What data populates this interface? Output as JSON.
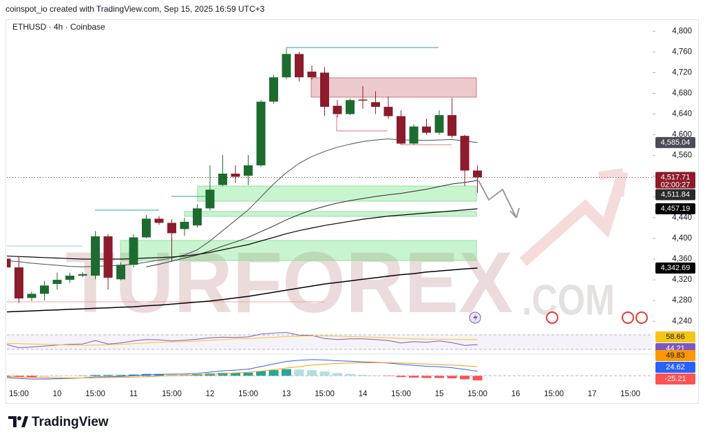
{
  "chart_data": {
    "type": "candlestick",
    "header": "coinspot_io created with TradingView.com, Sep 15, 2025 16:59 UTC+3",
    "title": "ETHUSD · 4h · Coinbase",
    "watermark": [
      "TURFOREX",
      ".COM"
    ],
    "footer": "TradingView",
    "categories": [
      null,
      "15:00",
      null,
      null,
      "10",
      null,
      null,
      "15:00",
      null,
      null,
      "11",
      null,
      null,
      "15:00",
      null,
      null,
      "12",
      null,
      null,
      "15:00",
      null,
      null,
      "13",
      null,
      null,
      "15:00",
      null,
      null,
      "14",
      null,
      null,
      "15:00",
      null,
      null,
      "15",
      null,
      null,
      "15:00",
      null,
      null,
      "16",
      null,
      null,
      "15:00",
      null,
      null,
      "17",
      null,
      null,
      "15:00"
    ],
    "open": [
      4361,
      4344,
      4285,
      4293,
      4312,
      4320,
      4328,
      4328,
      4404,
      4321,
      4349,
      4402,
      4438,
      4430,
      4418,
      4425,
      4458,
      4503,
      4525,
      4521,
      4541,
      4664,
      4711,
      4756,
      4722,
      4720,
      4656,
      4640,
      4668,
      4663,
      4654,
      4636,
      4583,
      4616,
      4604,
      4638,
      4598,
      4531,
      null,
      null,
      null,
      null,
      null,
      null,
      null,
      null,
      null,
      null,
      null,
      null
    ],
    "high": [
      4365,
      4365,
      4297,
      4318,
      4334,
      4334,
      4335,
      4414,
      4408,
      4354,
      4408,
      4445,
      4443,
      4437,
      4440,
      4466,
      4541,
      4561,
      4541,
      4561,
      4667,
      4716,
      4767,
      4760,
      4734,
      4731,
      4667,
      4670,
      4694,
      4684,
      4674,
      4647,
      4620,
      4631,
      4647,
      4671,
      4600,
      4541,
      null,
      null,
      null,
      null,
      null,
      null,
      null,
      null,
      null,
      null,
      null,
      null
    ],
    "low": [
      4340,
      4275,
      4279,
      4280,
      4301,
      4314,
      4325,
      4321,
      4301,
      4319,
      4344,
      4400,
      4426,
      4355,
      4405,
      4421,
      4454,
      4501,
      4507,
      4503,
      4538,
      4660,
      4707,
      4703,
      4707,
      4636,
      4634,
      4638,
      4650,
      4640,
      4631,
      4581,
      4581,
      4600,
      4600,
      4594,
      4501,
      4488,
      null,
      null,
      null,
      null,
      null,
      null,
      null,
      null,
      null,
      null,
      null,
      null
    ],
    "close": [
      4344,
      4284,
      4293,
      4309,
      4320,
      4328,
      4331,
      4404,
      4324,
      4349,
      4402,
      4438,
      4430,
      4410,
      4432,
      4458,
      4494,
      4525,
      4519,
      4541,
      4664,
      4711,
      4756,
      4711,
      4711,
      4654,
      4640,
      4667,
      4666,
      4654,
      4636,
      4583,
      4616,
      4604,
      4638,
      4598,
      4531,
      4517.71,
      null,
      null,
      null,
      null,
      null,
      null,
      null,
      null,
      null,
      null,
      null,
      null
    ],
    "up_color": "#1e6b30",
    "down_color": "#8c1c2b",
    "close_label": "4,517.71",
    "countdown": "02:00:27",
    "ylim": [
      4227,
      4823
    ],
    "yticks": [
      {
        "value": 4240,
        "label": "4,240"
      },
      {
        "value": 4280,
        "label": "4,280"
      },
      {
        "value": 4320,
        "label": "4,320"
      },
      {
        "value": 4360,
        "label": "4,360"
      },
      {
        "value": 4400,
        "label": "4,400"
      },
      {
        "value": 4440,
        "label": "4,440"
      },
      {
        "value": 4480,
        "label": "4,480"
      },
      {
        "value": 4520,
        "label": "4,520"
      },
      {
        "value": 4560,
        "label": "4,560"
      },
      {
        "value": 4600,
        "label": "4,600"
      },
      {
        "value": 4640,
        "label": "4,640"
      },
      {
        "value": 4680,
        "label": "4,680"
      },
      {
        "value": 4720,
        "label": "4,720"
      },
      {
        "value": 4760,
        "label": "4,760"
      },
      {
        "value": 4800,
        "label": "4,800"
      }
    ],
    "moving_averages": [
      {
        "color": "#4a4d57",
        "width": 1,
        "last_label": "4,585.04",
        "values": [
          4357,
          4355,
          4352,
          4350,
          4348,
          4346,
          4345,
          4346,
          4347,
          4348,
          4350,
          4354,
          4358,
          4362,
          4368,
          4378,
          4395,
          4415,
          4435,
          4455,
          4480,
          4505,
          4527,
          4545,
          4558,
          4568,
          4576,
          4582,
          4587,
          4590,
          4592,
          4590,
          4590,
          4589,
          4590,
          4591,
          4588,
          4585.04,
          null,
          null,
          null,
          null,
          null,
          null,
          null,
          null,
          null,
          null,
          null,
          null
        ]
      },
      {
        "color": "#2a2a2a",
        "width": 1,
        "last_label": "4,511.84",
        "values": [
          null,
          null,
          null,
          null,
          null,
          null,
          null,
          null,
          null,
          null,
          null,
          4345,
          4350,
          4356,
          4362,
          4368,
          4376,
          4385,
          4393,
          4402,
          4413,
          4424,
          4436,
          4446,
          4455,
          4462,
          4468,
          4473,
          4477,
          4481,
          4484,
          4487,
          4491,
          4495,
          4500,
          4505,
          4508,
          4511.84,
          null,
          null,
          null,
          null,
          null,
          null,
          null,
          null,
          null,
          null,
          null,
          null
        ]
      },
      {
        "color": "#000000",
        "width": 1.2,
        "last_label": "4,457.19",
        "values": [
          4366,
          4365,
          4364,
          4363,
          4362,
          4361,
          4360,
          4360,
          4360,
          4360,
          4361,
          4362,
          4363,
          4364,
          4366,
          4369,
          4373,
          4378,
          4383,
          4388,
          4395,
          4402,
          4409,
          4415,
          4420,
          4425,
          4429,
          4433,
          4437,
          4440,
          4443,
          4445,
          4447,
          4449,
          4451,
          4453,
          4455,
          4457.19,
          null,
          null,
          null,
          null,
          null,
          null,
          null,
          null,
          null,
          null,
          null,
          null
        ]
      },
      {
        "color": "#000000",
        "width": 1.5,
        "last_label": "4,342.69",
        "values": [
          4258,
          4259,
          4260,
          4261,
          4262,
          4263,
          4264,
          4265,
          4266,
          4267,
          4268,
          4270,
          4271,
          4273,
          4275,
          4277,
          4279,
          4282,
          4285,
          4288,
          4292,
          4296,
          4300,
          4304,
          4308,
          4312,
          4315,
          4318,
          4321,
          4324,
          4327,
          4330,
          4332,
          4335,
          4337,
          4339,
          4341,
          4342.69,
          null,
          null,
          null,
          null,
          null,
          null,
          null,
          null,
          null,
          null,
          null,
          null
        ]
      }
    ],
    "rsi": {
      "ylim": [
        20,
        85
      ],
      "series": [
        {
          "color": "#7e57c2",
          "values": [
            45,
            35,
            37,
            40,
            43,
            45,
            46,
            56,
            46,
            49,
            55,
            59,
            58,
            55,
            57,
            60,
            64,
            66,
            65,
            67,
            75,
            78,
            80,
            72,
            71,
            62,
            59,
            61,
            61,
            59,
            56,
            49,
            53,
            51,
            55,
            50,
            42,
            44.21,
            null,
            null,
            null,
            null,
            null,
            null,
            null,
            null,
            null,
            null,
            null,
            null
          ]
        },
        {
          "color": "#f5c518",
          "values": [
            48,
            47,
            46,
            45,
            44,
            43,
            42,
            43,
            44,
            45,
            47,
            49,
            51,
            52,
            53,
            55,
            57,
            59,
            61,
            62,
            64,
            66,
            68,
            69,
            70,
            70,
            69,
            68,
            67,
            66,
            64,
            62,
            61,
            60,
            60,
            59,
            59,
            58.66,
            null,
            null,
            null,
            null,
            null,
            null,
            null,
            null,
            null,
            null,
            null,
            null
          ]
        }
      ]
    },
    "macd": {
      "ylim": [
        -40,
        110
      ],
      "series": [
        {
          "color": "#2962ff",
          "values": [
            -10,
            -15,
            -18,
            -18,
            -16,
            -14,
            -12,
            -6,
            -5,
            -4,
            0,
            5,
            8,
            9,
            10,
            13,
            20,
            27,
            31,
            36,
            50,
            64,
            78,
            84,
            88,
            86,
            82,
            79,
            76,
            73,
            69,
            62,
            57,
            52,
            49,
            44,
            35,
            24.62,
            null,
            null,
            null,
            null,
            null,
            null,
            null,
            null,
            null,
            null,
            null,
            null
          ]
        },
        {
          "color": "#ff9800",
          "values": [
            -5,
            -7,
            -9,
            -11,
            -12,
            -12,
            -12,
            -11,
            -10,
            -9,
            -7,
            -5,
            -2,
            0,
            2,
            4,
            7,
            11,
            15,
            19,
            25,
            33,
            42,
            50,
            58,
            63,
            67,
            69,
            71,
            71,
            71,
            69,
            67,
            64,
            61,
            58,
            54,
            49.83,
            null,
            null,
            null,
            null,
            null,
            null,
            null,
            null,
            null,
            null,
            null,
            null
          ]
        }
      ],
      "histogram": [
        -5,
        -8,
        -9,
        -7,
        -4,
        -2,
        0,
        5,
        5,
        5,
        7,
        10,
        10,
        9,
        8,
        9,
        13,
        16,
        16,
        17,
        25,
        31,
        36,
        34,
        30,
        23,
        15,
        10,
        5,
        2,
        -2,
        -7,
        -10,
        -12,
        -12,
        -14,
        -19,
        -25.21,
        null,
        null,
        null,
        null,
        null,
        null,
        null,
        null,
        null,
        null,
        null,
        null
      ]
    }
  }
}
